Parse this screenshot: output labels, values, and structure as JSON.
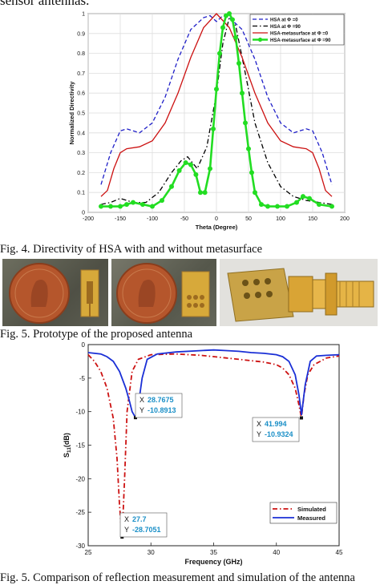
{
  "top_text": "sensor antennas.",
  "figure4": {
    "caption": "Fig. 4. Directivity of HSA with and without metasurface",
    "chart_data": {
      "type": "line",
      "xlabel": "Theta (Degree)",
      "ylabel": "Normalized Directivity",
      "xlim": [
        -200,
        200
      ],
      "ylim": [
        0,
        1
      ],
      "xticks": [
        "-200",
        "-150",
        "-100",
        "-50",
        "0",
        "50",
        "100",
        "150",
        "200"
      ],
      "yticks": [
        "0",
        "0.1",
        "0.2",
        "0.3",
        "0.4",
        "0.5",
        "0.6",
        "0.7",
        "0.8",
        "0.9",
        "1"
      ],
      "grid": true,
      "legend_position": "top-right",
      "series": [
        {
          "name": "HSA at Φ =0",
          "color": "#1f1fc8",
          "style": "dashed",
          "x": [
            -180,
            -165,
            -150,
            -140,
            -130,
            -120,
            -100,
            -80,
            -60,
            -40,
            -20,
            -10,
            0,
            10,
            20,
            40,
            60,
            80,
            100,
            120,
            130,
            140,
            150,
            165,
            180
          ],
          "y": [
            0.14,
            0.3,
            0.41,
            0.42,
            0.41,
            0.4,
            0.45,
            0.58,
            0.77,
            0.92,
            0.98,
            0.99,
            0.96,
            0.99,
            0.98,
            0.92,
            0.77,
            0.58,
            0.45,
            0.4,
            0.41,
            0.42,
            0.41,
            0.3,
            0.14
          ]
        },
        {
          "name": "HSA at Φ =90",
          "color": "#000000",
          "style": "dashdot",
          "x": [
            -180,
            -165,
            -150,
            -130,
            -110,
            -90,
            -70,
            -55,
            -45,
            -30,
            -15,
            0,
            10,
            20,
            30,
            45,
            60,
            80,
            100,
            120,
            140,
            160,
            180
          ],
          "y": [
            0.04,
            0.05,
            0.07,
            0.05,
            0.05,
            0.1,
            0.2,
            0.26,
            0.28,
            0.22,
            0.33,
            0.6,
            0.85,
            0.98,
            0.94,
            0.7,
            0.45,
            0.25,
            0.13,
            0.08,
            0.06,
            0.05,
            0.04
          ]
        },
        {
          "name": "HSA-metasurface at Φ =0",
          "color": "#cc1111",
          "style": "solid",
          "x": [
            -180,
            -170,
            -160,
            -150,
            -140,
            -120,
            -100,
            -80,
            -60,
            -40,
            -20,
            0,
            20,
            40,
            60,
            80,
            100,
            120,
            140,
            150,
            160,
            170,
            180
          ],
          "y": [
            0.08,
            0.11,
            0.22,
            0.3,
            0.32,
            0.33,
            0.36,
            0.45,
            0.6,
            0.78,
            0.93,
            1.0,
            0.93,
            0.78,
            0.6,
            0.45,
            0.36,
            0.33,
            0.32,
            0.3,
            0.22,
            0.11,
            0.08
          ]
        },
        {
          "name": "HSA-metasurface at Φ =90",
          "color": "#22dd22",
          "style": "solid-markers",
          "x": [
            -180,
            -165,
            -150,
            -140,
            -130,
            -115,
            -100,
            -85,
            -70,
            -58,
            -48,
            -40,
            -32,
            -25,
            -18,
            -10,
            -5,
            0,
            5,
            10,
            15,
            20,
            25,
            30,
            35,
            40,
            45,
            50,
            55,
            60,
            70,
            80,
            95,
            110,
            125,
            135,
            145,
            160,
            180
          ],
          "y": [
            0.03,
            0.03,
            0.03,
            0.04,
            0.05,
            0.04,
            0.03,
            0.06,
            0.13,
            0.21,
            0.25,
            0.24,
            0.19,
            0.1,
            0.1,
            0.22,
            0.42,
            0.62,
            0.8,
            0.93,
            0.99,
            1.0,
            0.97,
            0.88,
            0.75,
            0.6,
            0.45,
            0.32,
            0.2,
            0.1,
            0.04,
            0.03,
            0.03,
            0.03,
            0.05,
            0.08,
            0.07,
            0.04,
            0.03
          ]
        }
      ]
    }
  },
  "figure5": {
    "caption": "Fig. 5. Prototype of the proposed antenna"
  },
  "figure6": {
    "caption": "Fig. 5. Comparison of reflection measurement and simulation of the antenna",
    "chart_data": {
      "type": "line",
      "xlabel": "Frequency (GHz)",
      "ylabel": "S11(dB)",
      "ylabel_main": "S",
      "ylabel_sub": "11",
      "ylabel_rest": "(dB)",
      "xlim": [
        25,
        45
      ],
      "ylim": [
        -30,
        0
      ],
      "xticks": [
        "25",
        "30",
        "35",
        "40",
        "45"
      ],
      "yticks": [
        "0",
        "-5",
        "-10",
        "-15",
        "-20",
        "-25",
        "-30"
      ],
      "grid": false,
      "legend_position": "bottom-right",
      "series": [
        {
          "name": "Simulated",
          "color": "#cc1111",
          "style": "dashdot",
          "x": [
            25,
            25.5,
            26,
            26.5,
            27,
            27.3,
            27.5,
            27.7,
            27.9,
            28.1,
            28.5,
            29,
            30,
            32,
            34,
            36,
            38,
            39,
            40,
            40.5,
            41,
            41.5,
            41.8,
            41.994,
            42.2,
            42.5,
            43,
            44,
            45
          ],
          "y": [
            -1.5,
            -2.5,
            -4,
            -6.5,
            -11,
            -17,
            -24,
            -28.7051,
            -20,
            -10,
            -4,
            -2.2,
            -1.5,
            -1.4,
            -1.6,
            -2,
            -2.4,
            -2.6,
            -3,
            -3.5,
            -4.5,
            -6.5,
            -9,
            -10.9324,
            -7.5,
            -4.5,
            -3,
            -2,
            -1.7
          ]
        },
        {
          "name": "Measured",
          "color": "#1a2fd6",
          "style": "solid",
          "x": [
            25,
            26,
            26.5,
            27,
            27.5,
            28,
            28.3,
            28.5,
            28.7675,
            29,
            29.3,
            29.7,
            30.5,
            32,
            34,
            35,
            36,
            37,
            38,
            39,
            40,
            40.5,
            41,
            41.5,
            41.8,
            42,
            42.3,
            42.7,
            43.2,
            44,
            45
          ],
          "y": [
            -1.2,
            -1.4,
            -1.8,
            -2.5,
            -4,
            -6.5,
            -8.5,
            -10,
            -10.8913,
            -9,
            -5,
            -2.2,
            -1.4,
            -1.1,
            -0.9,
            -0.8,
            -0.9,
            -1.0,
            -1.2,
            -1.3,
            -1.5,
            -1.8,
            -2.5,
            -4.5,
            -7.5,
            -10.5,
            -6,
            -2.5,
            -1.7,
            -1.6,
            -1.5
          ]
        }
      ],
      "annotations": [
        {
          "x_label": "X",
          "x_value": "28.7675",
          "y_label": "Y",
          "y_value": "-10.8913",
          "px": 28.7675,
          "py": -10.8913
        },
        {
          "x_label": "X",
          "x_value": "41.994",
          "y_label": "Y",
          "y_value": "-10.9324",
          "px": 41.994,
          "py": -10.9324
        },
        {
          "x_label": "X",
          "x_value": "27.7",
          "y_label": "Y",
          "y_value": "-28.7051",
          "px": 27.7,
          "py": -28.7051
        }
      ]
    }
  }
}
